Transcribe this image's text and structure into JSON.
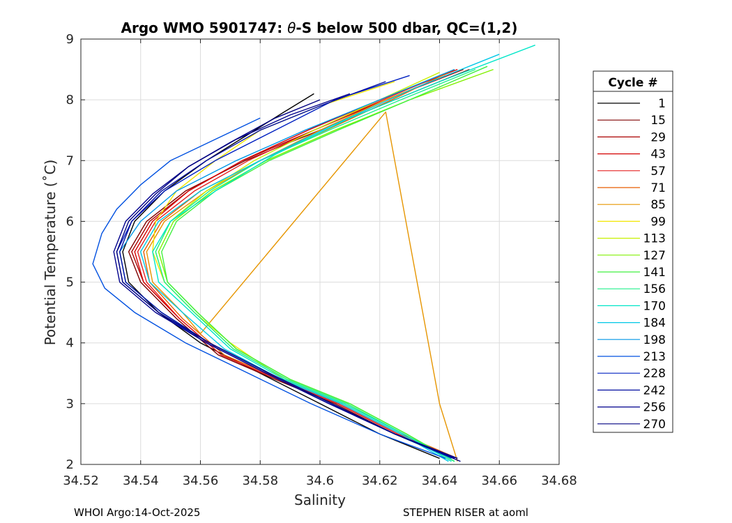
{
  "chart_data": {
    "type": "line",
    "title_prefix": "Argo WMO 5901747: ",
    "title_symbol": "θ",
    "title_suffix": "-S below 500 dbar,  QC=(1,2)",
    "xlabel": "Salinity",
    "ylabel": "Potential Temperature (˚C)",
    "xlim": [
      34.52,
      34.68
    ],
    "ylim": [
      2,
      9
    ],
    "xticks": [
      34.52,
      34.54,
      34.56,
      34.58,
      34.6,
      34.62,
      34.64,
      34.66,
      34.68
    ],
    "xtick_labels": [
      "34.52",
      "34.54",
      "34.56",
      "34.58",
      "34.6",
      "34.62",
      "34.64",
      "34.66",
      "34.68"
    ],
    "yticks": [
      2,
      3,
      4,
      5,
      6,
      7,
      8,
      9
    ],
    "ytick_labels": [
      "2",
      "3",
      "4",
      "5",
      "6",
      "7",
      "8",
      "9"
    ],
    "grid": true,
    "legend_title": "Cycle #",
    "legend_position": "outside-right",
    "legend": [
      {
        "label": "1",
        "color": "#000000"
      },
      {
        "label": "15",
        "color": "#7f0000"
      },
      {
        "label": "29",
        "color": "#aa0000"
      },
      {
        "label": "43",
        "color": "#d40000"
      },
      {
        "label": "57",
        "color": "#e52020"
      },
      {
        "label": "71",
        "color": "#e65c00"
      },
      {
        "label": "85",
        "color": "#e69500"
      },
      {
        "label": "99",
        "color": "#f2e600"
      },
      {
        "label": "113",
        "color": "#c8f000"
      },
      {
        "label": "127",
        "color": "#80f000"
      },
      {
        "label": "141",
        "color": "#40f040"
      },
      {
        "label": "156",
        "color": "#20f08c"
      },
      {
        "label": "170",
        "color": "#00e6c8"
      },
      {
        "label": "184",
        "color": "#00c8e6"
      },
      {
        "label": "198",
        "color": "#0096e6"
      },
      {
        "label": "213",
        "color": "#0050e0"
      },
      {
        "label": "228",
        "color": "#0020c0"
      },
      {
        "label": "242",
        "color": "#000ca0"
      },
      {
        "label": "256",
        "color": "#00008c"
      },
      {
        "label": "270",
        "color": "#000080"
      }
    ],
    "series": [
      {
        "name": "1",
        "color": "#000000",
        "x": [
          34.598,
          34.588,
          34.575,
          34.562,
          34.548,
          34.538,
          34.534,
          34.536,
          34.546,
          34.56,
          34.58,
          34.6,
          34.62,
          34.64
        ],
        "y": [
          8.1,
          7.8,
          7.4,
          7.0,
          6.5,
          6.0,
          5.5,
          5.0,
          4.5,
          4.0,
          3.5,
          3.0,
          2.5,
          2.1
        ]
      },
      {
        "name": "15",
        "color": "#7f0000",
        "x": [
          34.65,
          34.625,
          34.6,
          34.575,
          34.555,
          34.542,
          34.536,
          34.54,
          34.552,
          34.566,
          34.585,
          34.605,
          34.625,
          34.645
        ],
        "y": [
          8.5,
          8.0,
          7.5,
          7.0,
          6.5,
          6.0,
          5.5,
          5.0,
          4.4,
          3.8,
          3.4,
          3.0,
          2.5,
          2.1
        ]
      },
      {
        "name": "29",
        "color": "#aa0000",
        "x": [
          34.648,
          34.622,
          34.598,
          34.574,
          34.556,
          34.543,
          34.537,
          34.541,
          34.553,
          34.567,
          34.586,
          34.606,
          34.626,
          34.645
        ],
        "y": [
          8.5,
          8.0,
          7.5,
          7.0,
          6.5,
          6.0,
          5.5,
          5.0,
          4.4,
          3.8,
          3.4,
          3.0,
          2.5,
          2.1
        ]
      },
      {
        "name": "43",
        "color": "#d40000",
        "x": [
          34.646,
          34.62,
          34.596,
          34.574,
          34.556,
          34.544,
          34.538,
          34.541,
          34.553,
          34.567,
          34.586,
          34.606,
          34.626,
          34.645
        ],
        "y": [
          8.5,
          8.0,
          7.5,
          7.0,
          6.5,
          6.0,
          5.5,
          5.0,
          4.4,
          3.8,
          3.4,
          3.0,
          2.5,
          2.1
        ]
      },
      {
        "name": "57",
        "color": "#e52020",
        "x": [
          34.645,
          34.621,
          34.598,
          34.576,
          34.558,
          34.545,
          34.539,
          34.542,
          34.553,
          34.567,
          34.586,
          34.606,
          34.626,
          34.645
        ],
        "y": [
          8.5,
          8.0,
          7.5,
          7.0,
          6.5,
          6.0,
          5.5,
          5.0,
          4.4,
          3.8,
          3.4,
          3.0,
          2.5,
          2.1
        ]
      },
      {
        "name": "71",
        "color": "#e65c00",
        "x": [
          34.645,
          34.624,
          34.602,
          34.58,
          34.56,
          34.547,
          34.541,
          34.543,
          34.554,
          34.568,
          34.587,
          34.607,
          34.627,
          34.646
        ],
        "y": [
          8.5,
          8.0,
          7.5,
          7.0,
          6.5,
          6.0,
          5.5,
          5.0,
          4.4,
          3.8,
          3.4,
          3.0,
          2.5,
          2.1
        ]
      },
      {
        "name": "85",
        "color": "#e69500",
        "x": [
          34.642,
          34.622,
          34.6,
          34.58,
          34.562,
          34.548,
          34.542,
          34.544,
          34.554,
          34.56,
          34.622,
          34.64,
          34.646
        ],
        "y": [
          8.4,
          8.0,
          7.5,
          7.0,
          6.5,
          6.0,
          5.5,
          5.0,
          4.5,
          4.15,
          7.8,
          3.0,
          2.05
        ]
      },
      {
        "name": "99",
        "color": "#f2e600",
        "x": [
          34.625,
          34.6,
          34.58,
          34.565,
          34.552,
          34.545,
          34.544,
          34.548,
          34.558,
          34.57,
          34.588,
          34.608,
          34.628,
          34.645
        ],
        "y": [
          8.3,
          7.9,
          7.5,
          7.0,
          6.5,
          6.0,
          5.5,
          5.0,
          4.5,
          4.0,
          3.4,
          3.0,
          2.5,
          2.05
        ]
      },
      {
        "name": "113",
        "color": "#c8f000",
        "x": [
          34.64,
          34.62,
          34.598,
          34.578,
          34.562,
          34.55,
          34.545,
          34.548,
          34.558,
          34.571,
          34.589,
          34.609,
          34.628,
          34.645
        ],
        "y": [
          8.45,
          8.0,
          7.5,
          7.0,
          6.5,
          6.0,
          5.5,
          5.0,
          4.5,
          3.9,
          3.4,
          3.0,
          2.5,
          2.05
        ]
      },
      {
        "name": "127",
        "color": "#80f000",
        "x": [
          34.658,
          34.63,
          34.605,
          34.582,
          34.564,
          34.551,
          34.546,
          34.549,
          34.559,
          34.572,
          34.59,
          34.61,
          34.629,
          34.645
        ],
        "y": [
          8.5,
          8.0,
          7.5,
          7.0,
          6.5,
          6.0,
          5.5,
          5.0,
          4.5,
          3.9,
          3.4,
          3.0,
          2.5,
          2.05
        ]
      },
      {
        "name": "141",
        "color": "#40f040",
        "x": [
          34.656,
          34.63,
          34.606,
          34.583,
          34.565,
          34.552,
          34.547,
          34.549,
          34.559,
          34.572,
          34.59,
          34.61,
          34.629,
          34.645
        ],
        "y": [
          8.55,
          8.0,
          7.5,
          7.0,
          6.5,
          6.0,
          5.5,
          5.0,
          4.5,
          3.9,
          3.4,
          3.0,
          2.5,
          2.05
        ]
      },
      {
        "name": "156",
        "color": "#20f08c",
        "x": [
          34.652,
          34.627,
          34.603,
          34.58,
          34.563,
          34.55,
          34.545,
          34.548,
          34.558,
          34.571,
          34.589,
          34.609,
          34.628,
          34.645
        ],
        "y": [
          8.5,
          8.0,
          7.5,
          7.0,
          6.5,
          6.0,
          5.5,
          5.0,
          4.5,
          3.9,
          3.4,
          3.0,
          2.5,
          2.05
        ]
      },
      {
        "name": "170",
        "color": "#00e6c8",
        "x": [
          34.672,
          34.64,
          34.61,
          34.585,
          34.565,
          34.55,
          34.544,
          34.546,
          34.557,
          34.57,
          34.588,
          34.608,
          34.628,
          34.644
        ],
        "y": [
          8.9,
          8.3,
          7.7,
          7.1,
          6.5,
          6.0,
          5.5,
          5.0,
          4.5,
          3.9,
          3.4,
          3.0,
          2.5,
          2.05
        ]
      },
      {
        "name": "184",
        "color": "#00c8e6",
        "x": [
          34.66,
          34.632,
          34.605,
          34.58,
          34.56,
          34.546,
          34.54,
          34.543,
          34.554,
          34.568,
          34.587,
          34.607,
          34.627,
          34.643
        ],
        "y": [
          8.75,
          8.2,
          7.6,
          7.0,
          6.5,
          6.0,
          5.5,
          5.0,
          4.5,
          3.9,
          3.4,
          3.0,
          2.5,
          2.05
        ]
      },
      {
        "name": "198",
        "color": "#0096e6",
        "x": [
          34.645,
          34.62,
          34.595,
          34.572,
          34.552,
          34.54,
          34.533,
          34.535,
          34.547,
          34.563,
          34.583,
          34.604,
          34.625,
          34.644
        ],
        "y": [
          8.5,
          8.0,
          7.5,
          7.0,
          6.5,
          6.0,
          5.5,
          5.0,
          4.5,
          4.0,
          3.5,
          3.0,
          2.5,
          2.1
        ]
      },
      {
        "name": "213",
        "color": "#0050e0",
        "x": [
          34.58,
          34.565,
          34.55,
          34.54,
          34.532,
          34.527,
          34.524,
          34.528,
          34.538,
          34.555,
          34.576,
          34.597,
          34.62,
          34.642
        ],
        "y": [
          7.7,
          7.35,
          7.0,
          6.6,
          6.2,
          5.8,
          5.3,
          4.9,
          4.5,
          4.0,
          3.5,
          3.0,
          2.5,
          2.1
        ]
      },
      {
        "name": "228",
        "color": "#0020c0",
        "x": [
          34.63,
          34.605,
          34.585,
          34.565,
          34.548,
          34.537,
          34.532,
          34.534,
          34.546,
          34.562,
          34.582,
          34.603,
          34.625,
          34.645
        ],
        "y": [
          8.4,
          8.0,
          7.5,
          7.0,
          6.5,
          6.0,
          5.5,
          5.0,
          4.5,
          4.0,
          3.5,
          3.0,
          2.5,
          2.1
        ]
      },
      {
        "name": "242",
        "color": "#000ca0",
        "x": [
          34.622,
          34.6,
          34.58,
          34.562,
          34.547,
          34.537,
          34.533,
          34.535,
          34.547,
          34.563,
          34.583,
          34.604,
          34.625,
          34.646
        ],
        "y": [
          8.3,
          7.9,
          7.5,
          7.0,
          6.5,
          6.0,
          5.5,
          5.0,
          4.5,
          4.0,
          3.5,
          3.0,
          2.5,
          2.1
        ]
      },
      {
        "name": "256",
        "color": "#00008c",
        "x": [
          34.61,
          34.59,
          34.572,
          34.556,
          34.544,
          34.535,
          34.531,
          34.533,
          34.545,
          34.562,
          34.582,
          34.603,
          34.625,
          34.646
        ],
        "y": [
          8.1,
          7.75,
          7.35,
          6.9,
          6.45,
          6.0,
          5.5,
          5.0,
          4.5,
          4.0,
          3.5,
          3.0,
          2.5,
          2.1
        ]
      },
      {
        "name": "270",
        "color": "#000080",
        "x": [
          34.6,
          34.585,
          34.57,
          34.556,
          34.545,
          34.536,
          34.532,
          34.534,
          34.546,
          34.563,
          34.583,
          34.604,
          34.625,
          34.647
        ],
        "y": [
          8.0,
          7.7,
          7.3,
          6.9,
          6.45,
          6.0,
          5.5,
          5.0,
          4.5,
          4.0,
          3.5,
          3.0,
          2.5,
          2.05
        ]
      }
    ]
  },
  "footer": {
    "left": "WHOI Argo:14-Oct-2025",
    "right": "STEPHEN RISER at aoml"
  }
}
